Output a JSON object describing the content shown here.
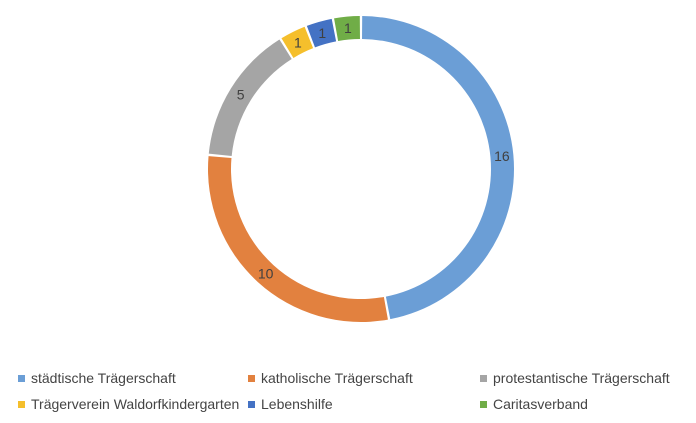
{
  "chart_data": {
    "type": "pie",
    "style": "donut",
    "title": "",
    "categories": [
      "städtische Trägerschaft",
      "katholische Trägerschaft",
      "protestantische Trägerschaft",
      "Trägerverein Waldorfkindergarten",
      "Lebenshilfe",
      "Caritasverband"
    ],
    "values": [
      16,
      10,
      5,
      1,
      1,
      1
    ],
    "colors": [
      "#6b9ed6",
      "#e2813f",
      "#a5a5a5",
      "#f5bf2c",
      "#4472c4",
      "#70ad47"
    ],
    "data_labels": [
      "16",
      "10",
      "5",
      "1",
      "1",
      "1"
    ],
    "legend_position": "bottom"
  }
}
